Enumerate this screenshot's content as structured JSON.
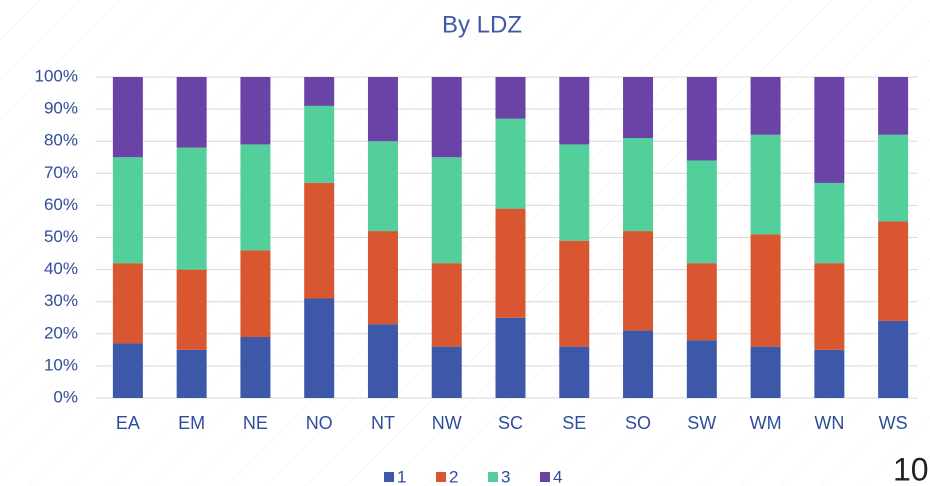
{
  "chart_data": {
    "type": "stacked_bar",
    "title": "By LDZ",
    "categories": [
      "EA",
      "EM",
      "NE",
      "NO",
      "NT",
      "NW",
      "SC",
      "SE",
      "SO",
      "SW",
      "WM",
      "WN",
      "WS"
    ],
    "series": [
      {
        "name": "1",
        "color": "#3e58a9",
        "values": [
          17,
          15,
          19,
          31,
          23,
          16,
          25,
          16,
          21,
          18,
          16,
          15,
          24
        ]
      },
      {
        "name": "2",
        "color": "#d85630",
        "values": [
          25,
          25,
          27,
          36,
          29,
          26,
          34,
          33,
          31,
          24,
          35,
          27,
          31
        ]
      },
      {
        "name": "3",
        "color": "#53cf9c",
        "values": [
          33,
          38,
          33,
          24,
          28,
          33,
          28,
          30,
          29,
          32,
          31,
          25,
          27
        ]
      },
      {
        "name": "4",
        "color": "#6a43a6",
        "values": [
          25,
          22,
          21,
          9,
          20,
          25,
          13,
          21,
          19,
          26,
          18,
          33,
          18
        ]
      }
    ],
    "ylim": [
      0,
      100
    ],
    "yticks": [
      {
        "value": 0,
        "label": "0%"
      },
      {
        "value": 10,
        "label": "10%"
      },
      {
        "value": 20,
        "label": "20%"
      },
      {
        "value": 30,
        "label": "30%"
      },
      {
        "value": 40,
        "label": "40%"
      },
      {
        "value": 50,
        "label": "50%"
      },
      {
        "value": 60,
        "label": "60%"
      },
      {
        "value": 70,
        "label": "70%"
      },
      {
        "value": 80,
        "label": "80%"
      },
      {
        "value": 90,
        "label": "90%"
      },
      {
        "value": 100,
        "label": "100%"
      }
    ],
    "grid": true,
    "legend": "bottom"
  },
  "page_number": "10"
}
